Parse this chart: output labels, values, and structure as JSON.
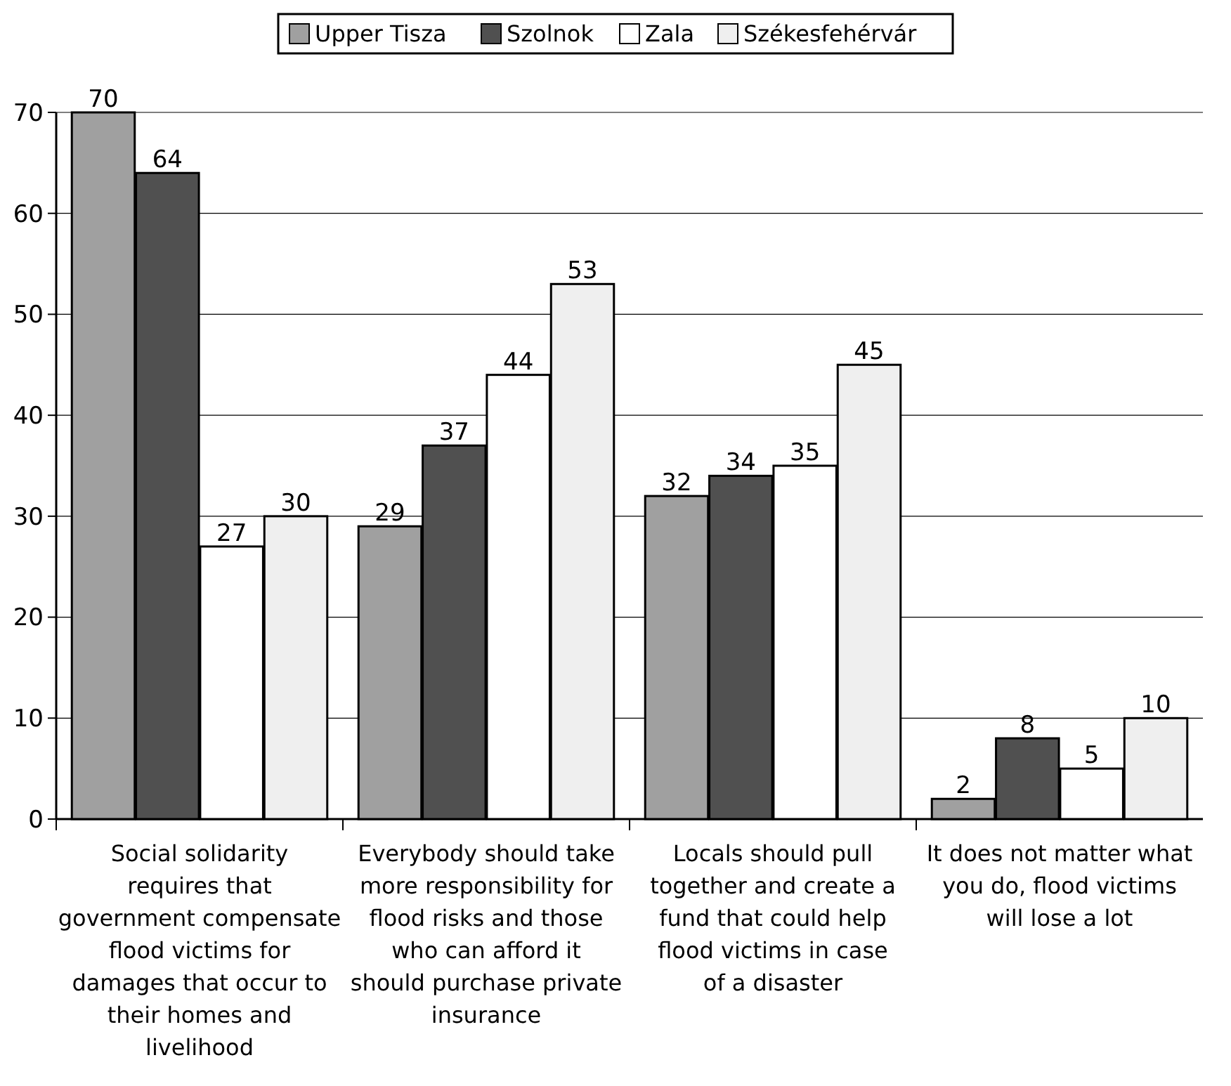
{
  "chart_data": {
    "type": "bar",
    "categories": [
      "Social solidarity requires that government compensate flood victims for damages that occur to their homes and livelihood",
      "Everybody should take more responsibility for flood risks and those who can afford it should purchase private insurance",
      "Locals should pull together and create a fund that could help flood victims in case of a disaster",
      "It does not matter what you do, flood victims will lose a lot"
    ],
    "series": [
      {
        "name": "Upper Tisza",
        "color": "#a0a0a0",
        "values": [
          70,
          29,
          32,
          2
        ]
      },
      {
        "name": "Szolnok",
        "color": "#505050",
        "values": [
          64,
          37,
          34,
          8
        ]
      },
      {
        "name": "Zala",
        "color": "#ffffff",
        "values": [
          27,
          44,
          35,
          5
        ]
      },
      {
        "name": "Székesfehérvár",
        "color": "#efefef",
        "values": [
          30,
          53,
          45,
          10
        ]
      }
    ],
    "ylim": [
      0,
      70
    ],
    "yticks": [
      0,
      10,
      20,
      30,
      40,
      50,
      60,
      70
    ],
    "grid": "y",
    "legend": "top",
    "data_labels": true
  }
}
